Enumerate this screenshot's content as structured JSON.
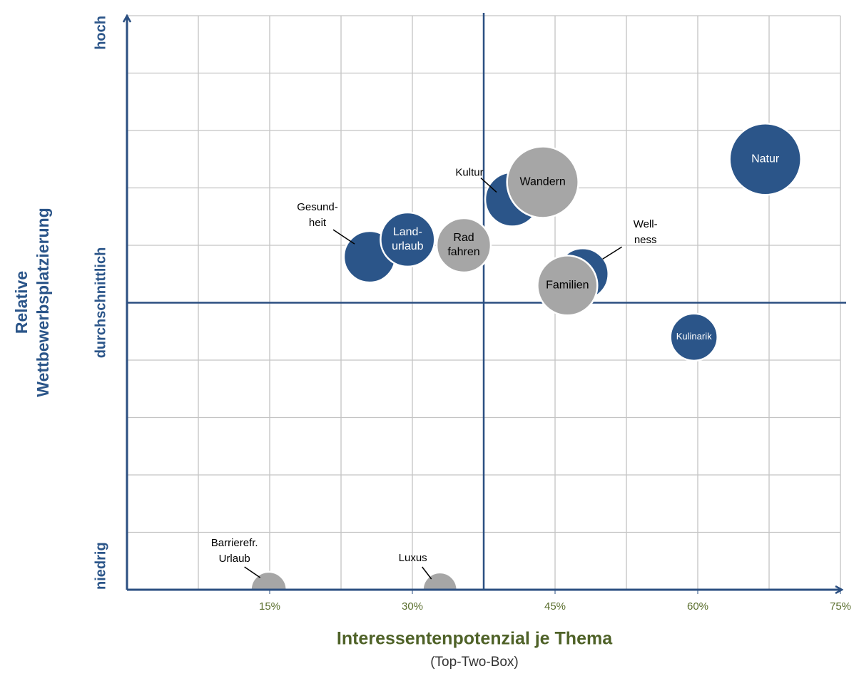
{
  "chart_data": {
    "type": "bubble",
    "x_label": "Interessentenpotenzial je Thema",
    "x_sublabel": "(Top-Two-Box)",
    "y_label": [
      "Relative",
      "Wettbewerbsplatzierung"
    ],
    "xlim": [
      0,
      75
    ],
    "ylim": [
      0,
      10
    ],
    "xticks": [
      {
        "value": 15,
        "label": "15%"
      },
      {
        "value": 30,
        "label": "30%"
      },
      {
        "value": 45,
        "label": "45%"
      },
      {
        "value": 60,
        "label": "60%"
      },
      {
        "value": 75,
        "label": "75%"
      }
    ],
    "yticks": [
      {
        "value": 0,
        "label": "niedrig"
      },
      {
        "value": 5,
        "label": "durchschnittlich"
      },
      {
        "value": 10,
        "label": "hoch"
      }
    ],
    "xgrid": [
      7.5,
      15,
      22.5,
      30,
      37.5,
      45,
      52.5,
      60,
      67.5,
      75
    ],
    "ygrid": [
      1,
      2,
      3,
      4,
      5,
      6,
      7,
      8,
      9,
      10
    ],
    "quadrant_lines": {
      "x": 37.5,
      "y": 5
    },
    "grid": true,
    "points": [
      {
        "label": [
          "Natur"
        ],
        "x": 67.1,
        "y": 7.5,
        "size": 25,
        "color": "#2b5589",
        "label_inside": true
      },
      {
        "label": [
          "Kultur"
        ],
        "x": 40.5,
        "y": 6.8,
        "size": 14.4,
        "color": "#2b5589",
        "label_inside": false
      },
      {
        "label": [
          "Wandern"
        ],
        "x": 43.7,
        "y": 7.1,
        "size": 25,
        "color": "#a6a6a6",
        "label_inside": true
      },
      {
        "label": [
          "Gesund-",
          "heit"
        ],
        "x": 25.5,
        "y": 5.8,
        "size": 13,
        "color": "#2b5589",
        "label_inside": false
      },
      {
        "label": [
          "Land-",
          "urlaub"
        ],
        "x": 29.5,
        "y": 6.1,
        "size": 14.4,
        "color": "#2b5589",
        "label_inside": true
      },
      {
        "label": [
          "Rad",
          "fahren"
        ],
        "x": 35.4,
        "y": 6.0,
        "size": 14.4,
        "color": "#a6a6a6",
        "label_inside": true
      },
      {
        "label": [
          "Well-",
          "ness"
        ],
        "x": 47.9,
        "y": 5.5,
        "size": 13,
        "color": "#2b5589",
        "label_inside": false
      },
      {
        "label": [
          "Familien"
        ],
        "x": 46.3,
        "y": 5.3,
        "size": 17.6,
        "color": "#a6a6a6",
        "label_inside": true
      },
      {
        "label": [
          "Kulinarik"
        ],
        "x": 59.6,
        "y": 4.4,
        "size": 10.9,
        "color": "#2b5589",
        "label_inside": true
      },
      {
        "label": [
          "Barrierefr.",
          "Urlaub"
        ],
        "x": 14.9,
        "y": 0,
        "size": 6.3,
        "color": "#a6a6a6",
        "label_inside": false
      },
      {
        "label": [
          "Luxus"
        ],
        "x": 32.9,
        "y": 0,
        "size": 5.8,
        "color": "#a6a6a6",
        "label_inside": false
      }
    ]
  }
}
